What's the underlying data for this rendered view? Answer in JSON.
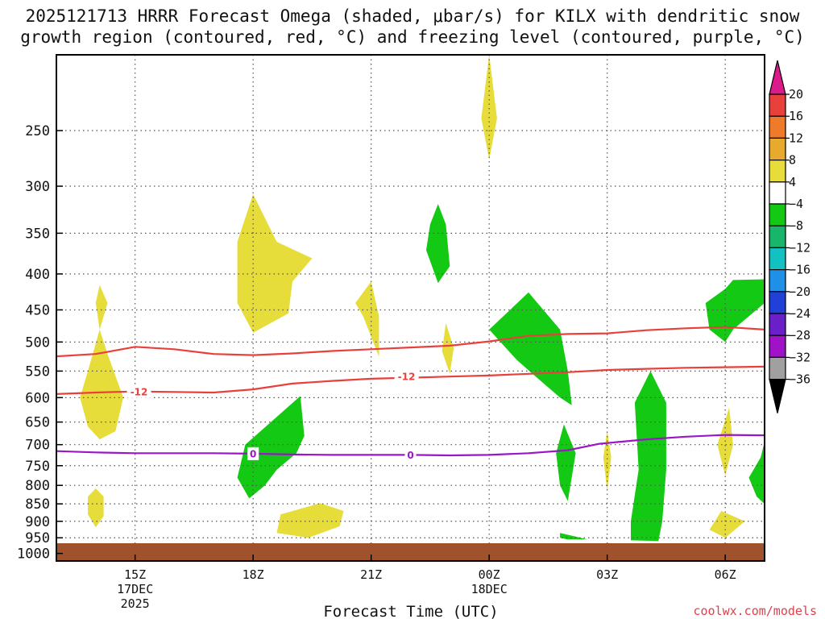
{
  "title_lines": [
    "2025121713 HRRR Forecast Omega (shaded, μbar/s) for KILX with dendritic snow",
    "growth region (contoured, red, °C) and freezing level (contoured, purple, °C)"
  ],
  "credit": "coolwx.com/models",
  "colors": {
    "dendritic": "#e8413c",
    "freezing": "#9a16c8",
    "ground": "#a0522d",
    "yellow": "#e6dc3a",
    "green": "#13c913"
  },
  "chart_data": {
    "type": "area",
    "xlabel": "Forecast Time (UTC)",
    "x_range_hours_utc": [
      13,
      31
    ],
    "x_ticks": [
      {
        "hour": 15,
        "label": "15Z",
        "sub": [
          "17DEC",
          "2025"
        ]
      },
      {
        "hour": 18,
        "label": "18Z",
        "sub": []
      },
      {
        "hour": 21,
        "label": "21Z",
        "sub": []
      },
      {
        "hour": 24,
        "label": "00Z",
        "sub": [
          "18DEC"
        ]
      },
      {
        "hour": 27,
        "label": "03Z",
        "sub": []
      },
      {
        "hour": 30,
        "label": "06Z",
        "sub": []
      }
    ],
    "y_scale": "log",
    "y_range_hpa": [
      1025,
      195
    ],
    "y_ticks": [
      250,
      300,
      350,
      400,
      450,
      500,
      550,
      600,
      650,
      700,
      750,
      800,
      850,
      900,
      950,
      1000
    ],
    "grid": true,
    "colorbar": {
      "units": "μbar/s",
      "levels": [
        "20",
        "16",
        "12",
        "8",
        "4",
        "−4",
        "−8",
        "−12",
        "−16",
        "−20",
        "−24",
        "−28",
        "−32",
        "−36"
      ],
      "bins": [
        {
          "color": "#e8413c"
        },
        {
          "color": "#ef7a2a"
        },
        {
          "color": "#e8aa2e"
        },
        {
          "color": "#e6dc3a"
        },
        {
          "color": "#ffffff"
        },
        {
          "color": "#13c913"
        },
        {
          "color": "#19b56b"
        },
        {
          "color": "#12c2c2"
        },
        {
          "color": "#1f90e8"
        },
        {
          "color": "#2040d8"
        },
        {
          "color": "#6a1fc8"
        },
        {
          "color": "#a012c8"
        },
        {
          "color": "#a0a0a0"
        }
      ],
      "top_arrow_color": "#dc1a8a",
      "bottom_arrow_color": "#000000"
    },
    "contours": [
      {
        "label": "-12",
        "color_key": "dendritic",
        "label_at_hour": 15.1,
        "points": [
          [
            13.0,
            593
          ],
          [
            14.0,
            590
          ],
          [
            15.0,
            588
          ],
          [
            16.0,
            589
          ],
          [
            17.0,
            590
          ],
          [
            18.0,
            584
          ],
          [
            19.0,
            573
          ],
          [
            20.0,
            568
          ],
          [
            21.0,
            564
          ],
          [
            22.0,
            562
          ],
          [
            23.0,
            560
          ],
          [
            24.0,
            558
          ],
          [
            25.0,
            555
          ],
          [
            26.0,
            552
          ],
          [
            27.0,
            548
          ],
          [
            28.0,
            546
          ],
          [
            29.0,
            544
          ],
          [
            30.0,
            543
          ],
          [
            31.0,
            542
          ]
        ]
      },
      {
        "label": "",
        "color_key": "dendritic",
        "points": [
          [
            13.0,
            524
          ],
          [
            14.0,
            520
          ],
          [
            15.0,
            508
          ],
          [
            16.0,
            512
          ],
          [
            17.0,
            520
          ],
          [
            18.0,
            522
          ],
          [
            19.0,
            519
          ],
          [
            20.0,
            515
          ],
          [
            21.0,
            512
          ],
          [
            22.0,
            509
          ],
          [
            23.0,
            506
          ],
          [
            24.0,
            499
          ],
          [
            25.0,
            490
          ],
          [
            26.0,
            487
          ],
          [
            27.0,
            486
          ],
          [
            28.0,
            481
          ],
          [
            29.0,
            478
          ],
          [
            30.0,
            476
          ],
          [
            31.0,
            480
          ]
        ]
      },
      {
        "label": "-12",
        "color_key": "dendritic",
        "label_at_hour": 21.9,
        "label_only": true,
        "label_p": 560
      },
      {
        "label": "0",
        "color_key": "freezing",
        "label_at_hour": 18.0,
        "label_at_hour_2": 22.0,
        "points": [
          [
            13.0,
            715
          ],
          [
            14.0,
            718
          ],
          [
            15.0,
            720
          ],
          [
            16.0,
            720
          ],
          [
            17.0,
            720
          ],
          [
            18.0,
            721
          ],
          [
            19.0,
            723
          ],
          [
            20.0,
            724
          ],
          [
            21.0,
            724
          ],
          [
            22.0,
            724
          ],
          [
            23.0,
            725
          ],
          [
            24.0,
            724
          ],
          [
            25.0,
            720
          ],
          [
            26.0,
            713
          ],
          [
            26.8,
            698
          ],
          [
            28.0,
            688
          ],
          [
            29.0,
            682
          ],
          [
            30.0,
            678
          ],
          [
            31.0,
            679
          ]
        ]
      }
    ],
    "regions": [
      {
        "color_key": "yellow",
        "points": [
          [
            14.1,
            415
          ],
          [
            14.3,
            440
          ],
          [
            14.1,
            480
          ],
          [
            14.0,
            440
          ]
        ]
      },
      {
        "color_key": "yellow",
        "points": [
          [
            14.1,
            480
          ],
          [
            14.3,
            520
          ],
          [
            14.7,
            600
          ],
          [
            14.5,
            670
          ],
          [
            14.1,
            688
          ],
          [
            13.8,
            660
          ],
          [
            13.6,
            600
          ],
          [
            13.8,
            550
          ]
        ]
      },
      {
        "color_key": "yellow",
        "points": [
          [
            14.0,
            808
          ],
          [
            14.2,
            830
          ],
          [
            14.2,
            885
          ],
          [
            14.0,
            918
          ],
          [
            13.8,
            880
          ],
          [
            13.8,
            830
          ]
        ]
      },
      {
        "color_key": "yellow",
        "points": [
          [
            18.0,
            308
          ],
          [
            18.6,
            360
          ],
          [
            19.5,
            380
          ],
          [
            19.0,
            410
          ],
          [
            18.9,
            455
          ],
          [
            18.0,
            485
          ],
          [
            17.6,
            440
          ],
          [
            17.6,
            360
          ]
        ]
      },
      {
        "color_key": "yellow",
        "points": [
          [
            19.7,
            848
          ],
          [
            20.3,
            870
          ],
          [
            20.2,
            915
          ],
          [
            19.4,
            950
          ],
          [
            18.6,
            935
          ],
          [
            18.7,
            880
          ]
        ]
      },
      {
        "color_key": "yellow",
        "points": [
          [
            21.0,
            410
          ],
          [
            21.2,
            460
          ],
          [
            21.2,
            525
          ],
          [
            20.8,
            460
          ],
          [
            20.6,
            440
          ]
        ]
      },
      {
        "color_key": "yellow",
        "points": [
          [
            22.9,
            470
          ],
          [
            23.1,
            510
          ],
          [
            23.0,
            555
          ],
          [
            22.8,
            515
          ]
        ]
      },
      {
        "color_key": "yellow",
        "points": [
          [
            24.0,
            195
          ],
          [
            24.2,
            240
          ],
          [
            24.0,
            275
          ],
          [
            23.8,
            240
          ]
        ]
      },
      {
        "color_key": "yellow",
        "points": [
          [
            27.0,
            668
          ],
          [
            27.1,
            730
          ],
          [
            27.0,
            815
          ],
          [
            26.9,
            730
          ]
        ]
      },
      {
        "color_key": "yellow",
        "points": [
          [
            30.1,
            620
          ],
          [
            30.2,
            700
          ],
          [
            30.0,
            775
          ],
          [
            29.8,
            700
          ]
        ]
      },
      {
        "color_key": "yellow",
        "points": [
          [
            29.9,
            870
          ],
          [
            30.5,
            900
          ],
          [
            30.0,
            950
          ],
          [
            29.6,
            925
          ]
        ]
      },
      {
        "color_key": "green",
        "points": [
          [
            22.7,
            318
          ],
          [
            22.9,
            340
          ],
          [
            23.0,
            390
          ],
          [
            22.7,
            412
          ],
          [
            22.4,
            370
          ],
          [
            22.5,
            340
          ]
        ]
      },
      {
        "color_key": "green",
        "points": [
          [
            19.2,
            597
          ],
          [
            19.3,
            680
          ],
          [
            19.1,
            720
          ],
          [
            18.6,
            760
          ],
          [
            18.3,
            800
          ],
          [
            17.9,
            835
          ],
          [
            17.6,
            780
          ],
          [
            17.8,
            700
          ]
        ]
      },
      {
        "color_key": "green",
        "points": [
          [
            25.0,
            425
          ],
          [
            25.8,
            480
          ],
          [
            26.0,
            550
          ],
          [
            26.1,
            615
          ],
          [
            25.8,
            600
          ],
          [
            25.1,
            555
          ],
          [
            24.7,
            530
          ],
          [
            24.0,
            480
          ]
        ]
      },
      {
        "color_key": "green",
        "points": [
          [
            25.9,
            655
          ],
          [
            26.2,
            720
          ],
          [
            26.0,
            842
          ],
          [
            25.8,
            800
          ],
          [
            25.7,
            720
          ]
        ]
      },
      {
        "color_key": "green",
        "points": [
          [
            25.8,
            935
          ],
          [
            26.5,
            955
          ],
          [
            26.0,
            955
          ],
          [
            25.8,
            950
          ]
        ]
      },
      {
        "color_key": "green",
        "points": [
          [
            28.1,
            550
          ],
          [
            28.5,
            610
          ],
          [
            28.5,
            760
          ],
          [
            28.4,
            900
          ],
          [
            28.3,
            960
          ],
          [
            27.6,
            958
          ],
          [
            27.6,
            900
          ],
          [
            27.8,
            760
          ],
          [
            27.7,
            610
          ]
        ]
      },
      {
        "color_key": "green",
        "points": [
          [
            31.0,
            407
          ],
          [
            31.0,
            440
          ],
          [
            30.2,
            480
          ],
          [
            30.0,
            500
          ],
          [
            29.6,
            480
          ],
          [
            29.5,
            440
          ],
          [
            30.0,
            420
          ],
          [
            30.2,
            408
          ]
        ]
      },
      {
        "color_key": "green",
        "points": [
          [
            31.0,
            693
          ],
          [
            31.0,
            850
          ],
          [
            30.8,
            830
          ],
          [
            30.6,
            780
          ],
          [
            30.9,
            730
          ]
        ]
      }
    ]
  }
}
